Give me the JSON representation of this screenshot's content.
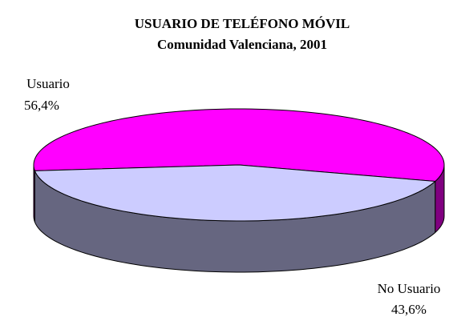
{
  "chart_data": {
    "type": "pie",
    "title": "USUARIO DE TELÉFONO MÓVIL",
    "subtitle": "Comunidad Valenciana, 2001",
    "categories": [
      "Usuario",
      "No Usuario"
    ],
    "values": [
      56.4,
      43.6
    ],
    "value_labels": [
      "56,4%",
      "43,6%"
    ],
    "colors": [
      "#ff00ff",
      "#ccccff"
    ],
    "side_colors": [
      "#800080",
      "#666680"
    ]
  }
}
